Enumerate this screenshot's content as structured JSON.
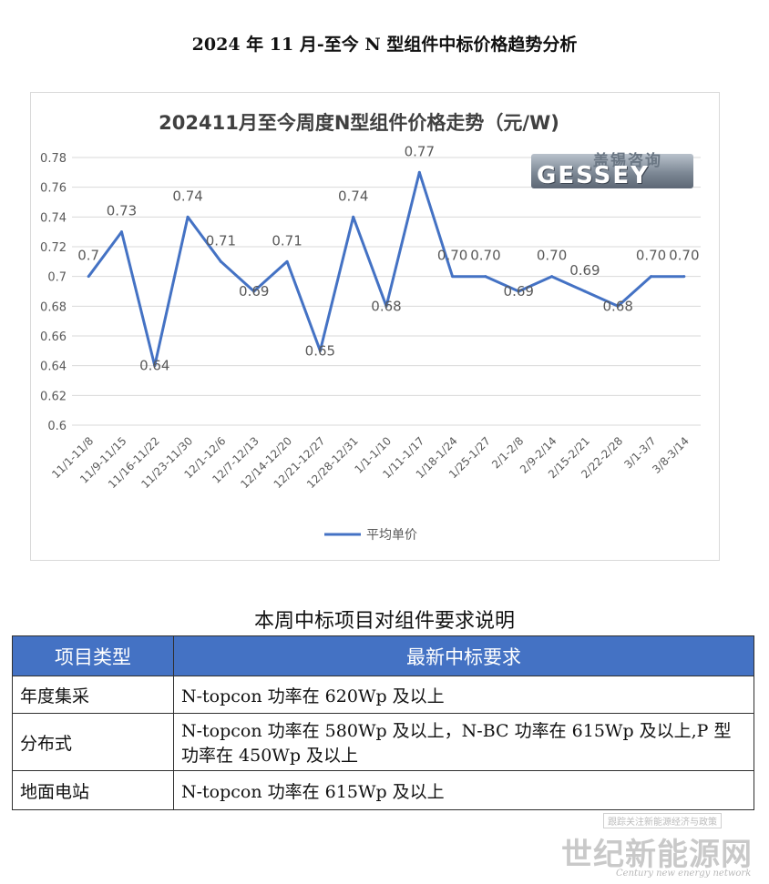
{
  "page_title": "2024 年 11 月-至今 N 型组件中标价格趋势分析",
  "logo": {
    "top_text": "盖锡咨询",
    "main_text": "GESSEY"
  },
  "chart_data": {
    "type": "line",
    "title": "202411月至今周度N型组件价格走势（元/W)",
    "categories": [
      "11/1-11/8",
      "11/9-11/15",
      "11/16-11/22",
      "11/23-11/30",
      "12/1-12/6",
      "12/7-12/13",
      "12/14-12/20",
      "12/21-12/27",
      "12/28-12/31",
      "1/1-1/10",
      "1/11-1/17",
      "1/18-1/24",
      "1/25-1/27",
      "2/1-2/8",
      "2/9-2/14",
      "2/15-2/21",
      "2/22-2/28",
      "3/1-3/7",
      "3/8-3/14"
    ],
    "series": [
      {
        "name": "平均单价",
        "values": [
          0.7,
          0.73,
          0.64,
          0.74,
          0.71,
          0.69,
          0.71,
          0.65,
          0.74,
          0.68,
          0.77,
          0.7,
          0.7,
          0.69,
          0.7,
          0.69,
          0.68,
          0.7,
          0.7
        ],
        "labels": [
          "0.7",
          "0.73",
          "0.64",
          "0.74",
          "0.71",
          "0.69",
          "0.71",
          "0.65",
          "0.74",
          "0.68",
          "0.77",
          "0.70",
          "0.70",
          "0.69",
          "0.70",
          "0.69",
          "0.68",
          "0.70",
          "0.70"
        ],
        "color": "#4472c4"
      }
    ],
    "ylim": [
      0.6,
      0.78
    ],
    "yticks": [
      "0.6",
      "0.62",
      "0.64",
      "0.66",
      "0.68",
      "0.7",
      "0.72",
      "0.74",
      "0.76",
      "0.78"
    ],
    "grid": true,
    "legend": "bottom"
  },
  "table": {
    "title": "本周中标项目对组件要求说明",
    "headers": [
      "项目类型",
      "最新中标要求"
    ],
    "rows": [
      {
        "type": "年度集采",
        "req": "N-topcon 功率在 620Wp 及以上"
      },
      {
        "type": "分布式",
        "req": "N-topcon 功率在 580Wp 及以上，N-BC 功率在 615Wp 及以上,P 型功率在 450Wp 及以上"
      },
      {
        "type": "地面电站",
        "req": "N-topcon 功率在 615Wp 及以上"
      }
    ]
  },
  "watermark": {
    "small": "跟踪关注新能源经济与政策",
    "big": "世纪新能源网",
    "en": "Century new energy network"
  }
}
